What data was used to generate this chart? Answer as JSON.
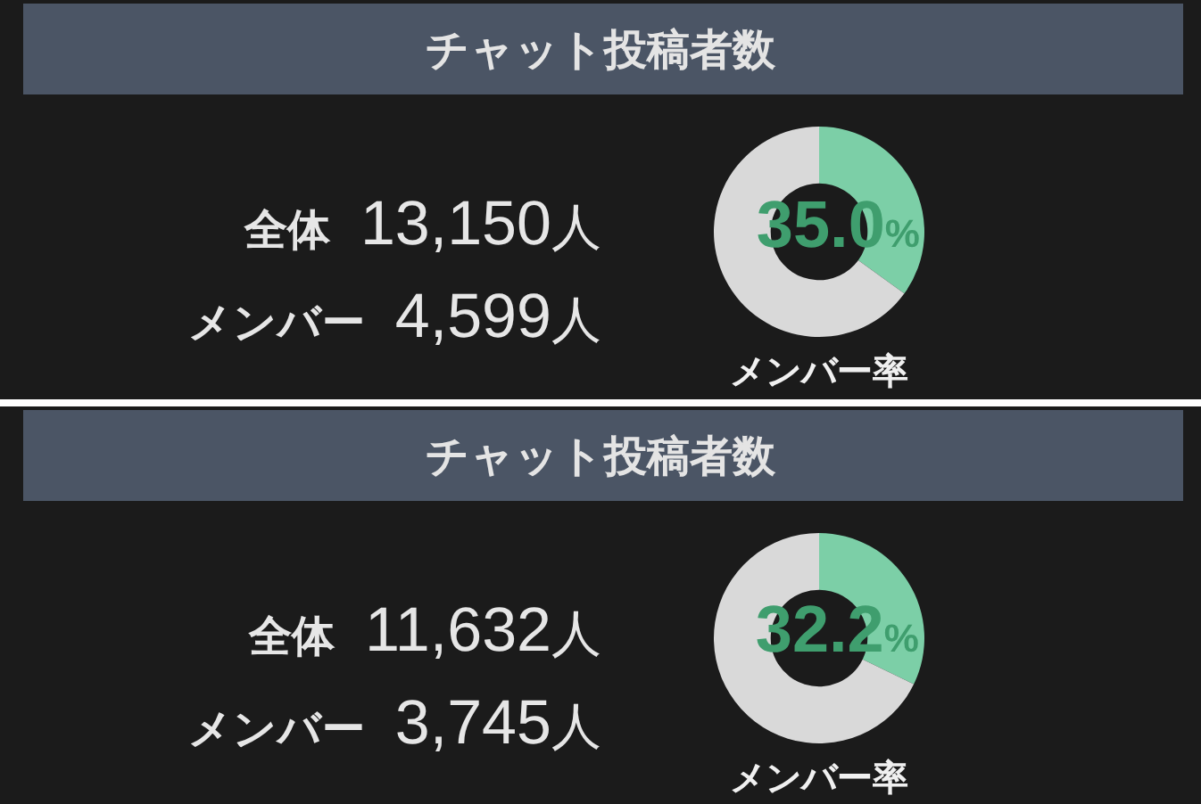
{
  "chart_data": [
    {
      "type": "donut",
      "title": "チャット投稿者数",
      "categories": [
        null,
        null
      ],
      "values": [
        35.0,
        65.0
      ],
      "colors": [
        "#7ccfa7",
        "#d9d9d9"
      ],
      "value_labels": [
        "35.0%",
        null
      ],
      "xlabel": "メンバー率",
      "annotations": [
        "全体",
        "13,150人",
        "メンバー",
        "4,599人"
      ]
    },
    {
      "type": "donut",
      "title": "チャット投稿者数",
      "categories": [
        null,
        null
      ],
      "values": [
        32.2,
        67.8
      ],
      "colors": [
        "#7ccfa7",
        "#d9d9d9"
      ],
      "value_labels": [
        "32.2%",
        null
      ],
      "xlabel": "メンバー率",
      "annotations": [
        "全体",
        "11,632人",
        "メンバー",
        "3,745人"
      ]
    }
  ]
}
